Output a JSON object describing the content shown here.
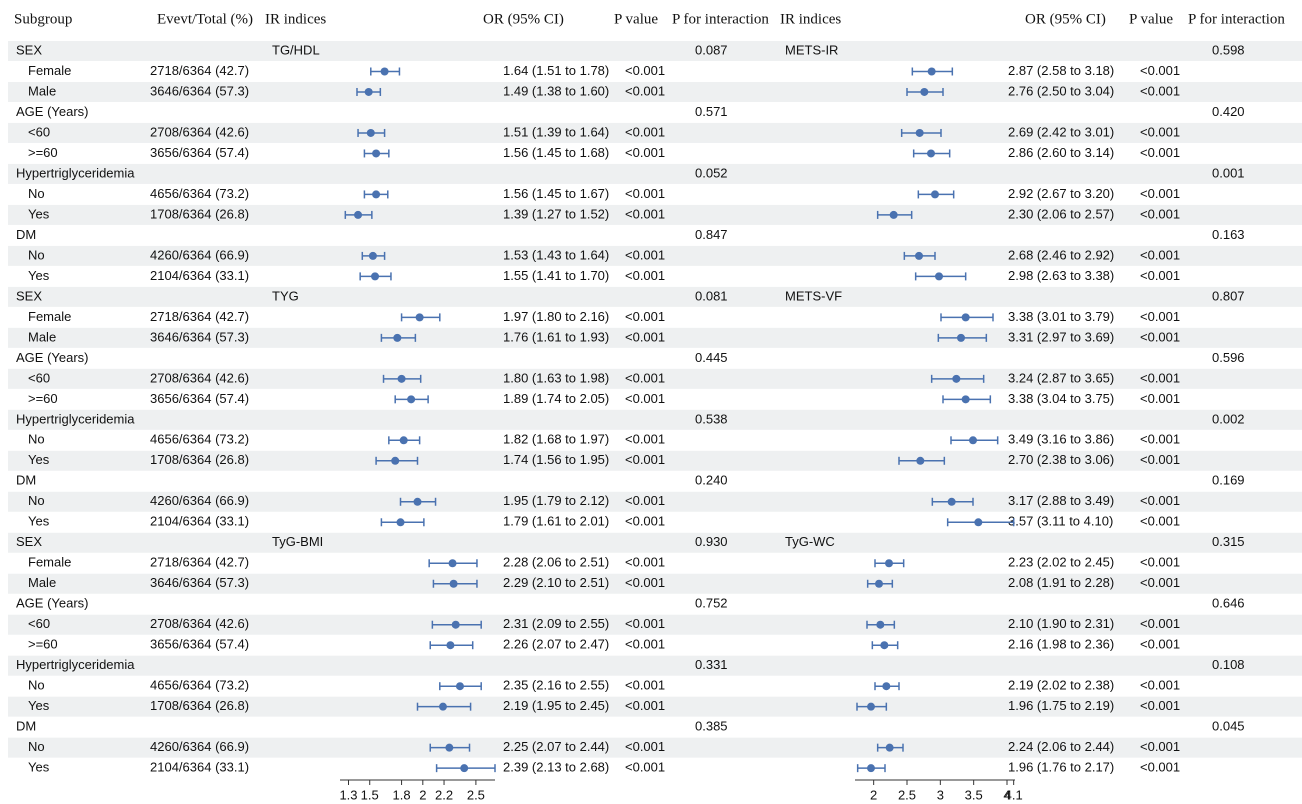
{
  "chart_data": {
    "type": "forest",
    "columns": [
      "Subgroup",
      "Evevt/Total (%)",
      "IR indices",
      "OR (95% CI)",
      "P value",
      "P for interaction"
    ],
    "right_columns": [
      "IR indices",
      "OR (95% CI)",
      "P value",
      "P for interaction"
    ],
    "color": "#4a72b0",
    "xlim": [
      1.22,
      2.68
    ],
    "xticks": [
      1.3,
      1.5,
      1.8,
      2,
      2.2,
      2.5
    ],
    "x2lim": [
      1.72,
      4.12
    ],
    "x2ticks": [
      2,
      2.5,
      3,
      3.5,
      4,
      4.1
    ],
    "panels": [
      {
        "left_index": "TG/HDL",
        "right_index": "METS-IR",
        "groups": [
          {
            "name": "SEX",
            "left_p": "0.087",
            "right_p": "0.598",
            "rows": [
              {
                "label": "Female",
                "events": "2718/6364 (42.7)",
                "left": {
                  "or": 1.64,
                  "lower": 1.51,
                  "upper": 1.78,
                  "label": "1.64 (1.51 to 1.78)",
                  "p": "<0.001"
                },
                "right": {
                  "or": 2.87,
                  "lower": 2.58,
                  "upper": 3.18,
                  "label": "2.87 (2.58 to 3.18)",
                  "p": "<0.001"
                }
              },
              {
                "label": "Male",
                "events": "3646/6364 (57.3)",
                "left": {
                  "or": 1.49,
                  "lower": 1.38,
                  "upper": 1.6,
                  "label": "1.49 (1.38 to 1.60)",
                  "p": "<0.001"
                },
                "right": {
                  "or": 2.76,
                  "lower": 2.5,
                  "upper": 3.04,
                  "label": "2.76 (2.50 to 3.04)",
                  "p": "<0.001"
                }
              }
            ]
          },
          {
            "name": "AGE (Years)",
            "left_p": "0.571",
            "right_p": "0.420",
            "rows": [
              {
                "label": "<60",
                "events": "2708/6364 (42.6)",
                "left": {
                  "or": 1.51,
                  "lower": 1.39,
                  "upper": 1.64,
                  "label": "1.51 (1.39 to 1.64)",
                  "p": "<0.001"
                },
                "right": {
                  "or": 2.69,
                  "lower": 2.42,
                  "upper": 3.01,
                  "label": "2.69 (2.42 to 3.01)",
                  "p": "<0.001"
                }
              },
              {
                "label": ">=60",
                "events": "3656/6364 (57.4)",
                "left": {
                  "or": 1.56,
                  "lower": 1.45,
                  "upper": 1.68,
                  "label": "1.56 (1.45 to 1.68)",
                  "p": "<0.001"
                },
                "right": {
                  "or": 2.86,
                  "lower": 2.6,
                  "upper": 3.14,
                  "label": "2.86 (2.60 to 3.14)",
                  "p": "<0.001"
                }
              }
            ]
          },
          {
            "name": "Hypertriglyceridemia",
            "left_p": "0.052",
            "right_p": "0.001",
            "rows": [
              {
                "label": "No",
                "events": "4656/6364 (73.2)",
                "left": {
                  "or": 1.56,
                  "lower": 1.45,
                  "upper": 1.67,
                  "label": "1.56 (1.45 to 1.67)",
                  "p": "<0.001"
                },
                "right": {
                  "or": 2.92,
                  "lower": 2.67,
                  "upper": 3.2,
                  "label": "2.92 (2.67 to 3.20)",
                  "p": "<0.001"
                }
              },
              {
                "label": "Yes",
                "events": "1708/6364 (26.8)",
                "left": {
                  "or": 1.39,
                  "lower": 1.27,
                  "upper": 1.52,
                  "label": "1.39 (1.27 to 1.52)",
                  "p": "<0.001"
                },
                "right": {
                  "or": 2.3,
                  "lower": 2.06,
                  "upper": 2.57,
                  "label": "2.30 (2.06 to 2.57)",
                  "p": "<0.001"
                }
              }
            ]
          },
          {
            "name": "DM",
            "left_p": "0.847",
            "right_p": "0.163",
            "rows": [
              {
                "label": "No",
                "events": "4260/6364 (66.9)",
                "left": {
                  "or": 1.53,
                  "lower": 1.43,
                  "upper": 1.64,
                  "label": "1.53 (1.43 to 1.64)",
                  "p": "<0.001"
                },
                "right": {
                  "or": 2.68,
                  "lower": 2.46,
                  "upper": 2.92,
                  "label": "2.68 (2.46 to 2.92)",
                  "p": "<0.001"
                }
              },
              {
                "label": "Yes",
                "events": "2104/6364 (33.1)",
                "left": {
                  "or": 1.55,
                  "lower": 1.41,
                  "upper": 1.7,
                  "label": "1.55 (1.41 to 1.70)",
                  "p": "<0.001"
                },
                "right": {
                  "or": 2.98,
                  "lower": 2.63,
                  "upper": 3.38,
                  "label": "2.98 (2.63 to 3.38)",
                  "p": "<0.001"
                }
              }
            ]
          }
        ]
      },
      {
        "left_index": "TYG",
        "right_index": "METS-VF",
        "groups": [
          {
            "name": "SEX",
            "left_p": "0.081",
            "right_p": "0.807",
            "rows": [
              {
                "label": "Female",
                "events": "2718/6364 (42.7)",
                "left": {
                  "or": 1.97,
                  "lower": 1.8,
                  "upper": 2.16,
                  "label": "1.97 (1.80 to 2.16)",
                  "p": "<0.001"
                },
                "right": {
                  "or": 3.38,
                  "lower": 3.01,
                  "upper": 3.79,
                  "label": "3.38 (3.01 to 3.79)",
                  "p": "<0.001"
                }
              },
              {
                "label": "Male",
                "events": "3646/6364 (57.3)",
                "left": {
                  "or": 1.76,
                  "lower": 1.61,
                  "upper": 1.93,
                  "label": "1.76 (1.61 to 1.93)",
                  "p": "<0.001"
                },
                "right": {
                  "or": 3.31,
                  "lower": 2.97,
                  "upper": 3.69,
                  "label": "3.31 (2.97 to 3.69)",
                  "p": "<0.001"
                }
              }
            ]
          },
          {
            "name": "AGE (Years)",
            "left_p": "0.445",
            "right_p": "0.596",
            "rows": [
              {
                "label": "<60",
                "events": "2708/6364 (42.6)",
                "left": {
                  "or": 1.8,
                  "lower": 1.63,
                  "upper": 1.98,
                  "label": "1.80 (1.63 to 1.98)",
                  "p": "<0.001"
                },
                "right": {
                  "or": 3.24,
                  "lower": 2.87,
                  "upper": 3.65,
                  "label": "3.24 (2.87 to 3.65)",
                  "p": "<0.001"
                }
              },
              {
                "label": ">=60",
                "events": "3656/6364 (57.4)",
                "left": {
                  "or": 1.89,
                  "lower": 1.74,
                  "upper": 2.05,
                  "label": "1.89 (1.74 to 2.05)",
                  "p": "<0.001"
                },
                "right": {
                  "or": 3.38,
                  "lower": 3.04,
                  "upper": 3.75,
                  "label": "3.38 (3.04 to 3.75)",
                  "p": "<0.001"
                }
              }
            ]
          },
          {
            "name": "Hypertriglyceridemia",
            "left_p": "0.538",
            "right_p": "0.002",
            "rows": [
              {
                "label": "No",
                "events": "4656/6364 (73.2)",
                "left": {
                  "or": 1.82,
                  "lower": 1.68,
                  "upper": 1.97,
                  "label": "1.82 (1.68 to 1.97)",
                  "p": "<0.001"
                },
                "right": {
                  "or": 3.49,
                  "lower": 3.16,
                  "upper": 3.86,
                  "label": "3.49 (3.16 to 3.86)",
                  "p": "<0.001"
                }
              },
              {
                "label": "Yes",
                "events": "1708/6364 (26.8)",
                "left": {
                  "or": 1.74,
                  "lower": 1.56,
                  "upper": 1.95,
                  "label": "1.74 (1.56 to 1.95)",
                  "p": "<0.001"
                },
                "right": {
                  "or": 2.7,
                  "lower": 2.38,
                  "upper": 3.06,
                  "label": "2.70 (2.38 to 3.06)",
                  "p": "<0.001"
                }
              }
            ]
          },
          {
            "name": "DM",
            "left_p": "0.240",
            "right_p": "0.169",
            "rows": [
              {
                "label": "No",
                "events": "4260/6364 (66.9)",
                "left": {
                  "or": 1.95,
                  "lower": 1.79,
                  "upper": 2.12,
                  "label": "1.95 (1.79 to 2.12)",
                  "p": "<0.001"
                },
                "right": {
                  "or": 3.17,
                  "lower": 2.88,
                  "upper": 3.49,
                  "label": "3.17 (2.88 to 3.49)",
                  "p": "<0.001"
                }
              },
              {
                "label": "Yes",
                "events": "2104/6364 (33.1)",
                "left": {
                  "or": 1.79,
                  "lower": 1.61,
                  "upper": 2.01,
                  "label": "1.79 (1.61 to 2.01)",
                  "p": "<0.001"
                },
                "right": {
                  "or": 3.57,
                  "lower": 3.11,
                  "upper": 4.1,
                  "label": "3.57 (3.11 to 4.10)",
                  "p": "<0.001"
                }
              }
            ]
          }
        ]
      },
      {
        "left_index": "TyG-BMI",
        "right_index": "TyG-WC",
        "groups": [
          {
            "name": "SEX",
            "left_p": "0.930",
            "right_p": "0.315",
            "rows": [
              {
                "label": "Female",
                "events": "2718/6364 (42.7)",
                "left": {
                  "or": 2.28,
                  "lower": 2.06,
                  "upper": 2.51,
                  "label": "2.28 (2.06 to 2.51)",
                  "p": "<0.001"
                },
                "right": {
                  "or": 2.23,
                  "lower": 2.02,
                  "upper": 2.45,
                  "label": "2.23 (2.02 to 2.45)",
                  "p": "<0.001"
                }
              },
              {
                "label": "Male",
                "events": "3646/6364 (57.3)",
                "left": {
                  "or": 2.29,
                  "lower": 2.1,
                  "upper": 2.51,
                  "label": "2.29 (2.10 to 2.51)",
                  "p": "<0.001"
                },
                "right": {
                  "or": 2.08,
                  "lower": 1.91,
                  "upper": 2.28,
                  "label": "2.08 (1.91 to 2.28)",
                  "p": "<0.001"
                }
              }
            ]
          },
          {
            "name": "AGE (Years)",
            "left_p": "0.752",
            "right_p": "0.646",
            "rows": [
              {
                "label": "<60",
                "events": "2708/6364 (42.6)",
                "left": {
                  "or": 2.31,
                  "lower": 2.09,
                  "upper": 2.55,
                  "label": "2.31 (2.09 to 2.55)",
                  "p": "<0.001"
                },
                "right": {
                  "or": 2.1,
                  "lower": 1.9,
                  "upper": 2.31,
                  "label": "2.10 (1.90 to 2.31)",
                  "p": "<0.001"
                }
              },
              {
                "label": ">=60",
                "events": "3656/6364 (57.4)",
                "left": {
                  "or": 2.26,
                  "lower": 2.07,
                  "upper": 2.47,
                  "label": "2.26 (2.07 to 2.47)",
                  "p": "<0.001"
                },
                "right": {
                  "or": 2.16,
                  "lower": 1.98,
                  "upper": 2.36,
                  "label": "2.16 (1.98 to 2.36)",
                  "p": "<0.001"
                }
              }
            ]
          },
          {
            "name": "Hypertriglyceridemia",
            "left_p": "0.331",
            "right_p": "0.108",
            "rows": [
              {
                "label": "No",
                "events": "4656/6364 (73.2)",
                "left": {
                  "or": 2.35,
                  "lower": 2.16,
                  "upper": 2.55,
                  "label": "2.35 (2.16 to 2.55)",
                  "p": "<0.001"
                },
                "right": {
                  "or": 2.19,
                  "lower": 2.02,
                  "upper": 2.38,
                  "label": "2.19 (2.02 to 2.38)",
                  "p": "<0.001"
                }
              },
              {
                "label": "Yes",
                "events": "1708/6364 (26.8)",
                "left": {
                  "or": 2.19,
                  "lower": 1.95,
                  "upper": 2.45,
                  "label": "2.19 (1.95 to 2.45)",
                  "p": "<0.001"
                },
                "right": {
                  "or": 1.96,
                  "lower": 1.75,
                  "upper": 2.19,
                  "label": "1.96 (1.75 to 2.19)",
                  "p": "<0.001"
                }
              }
            ]
          },
          {
            "name": "DM",
            "left_p": "0.385",
            "right_p": "0.045",
            "rows": [
              {
                "label": "No",
                "events": "4260/6364 (66.9)",
                "left": {
                  "or": 2.25,
                  "lower": 2.07,
                  "upper": 2.44,
                  "label": "2.25 (2.07 to 2.44)",
                  "p": "<0.001"
                },
                "right": {
                  "or": 2.24,
                  "lower": 2.06,
                  "upper": 2.44,
                  "label": "2.24 (2.06 to 2.44)",
                  "p": "<0.001"
                }
              },
              {
                "label": "Yes",
                "events": "2104/6364 (33.1)",
                "left": {
                  "or": 2.39,
                  "lower": 2.13,
                  "upper": 2.68,
                  "label": "2.39 (2.13 to 2.68)",
                  "p": "<0.001"
                },
                "right": {
                  "or": 1.96,
                  "lower": 1.76,
                  "upper": 2.17,
                  "label": "1.96 (1.76 to 2.17)",
                  "p": "<0.001"
                }
              }
            ]
          }
        ]
      }
    ]
  }
}
